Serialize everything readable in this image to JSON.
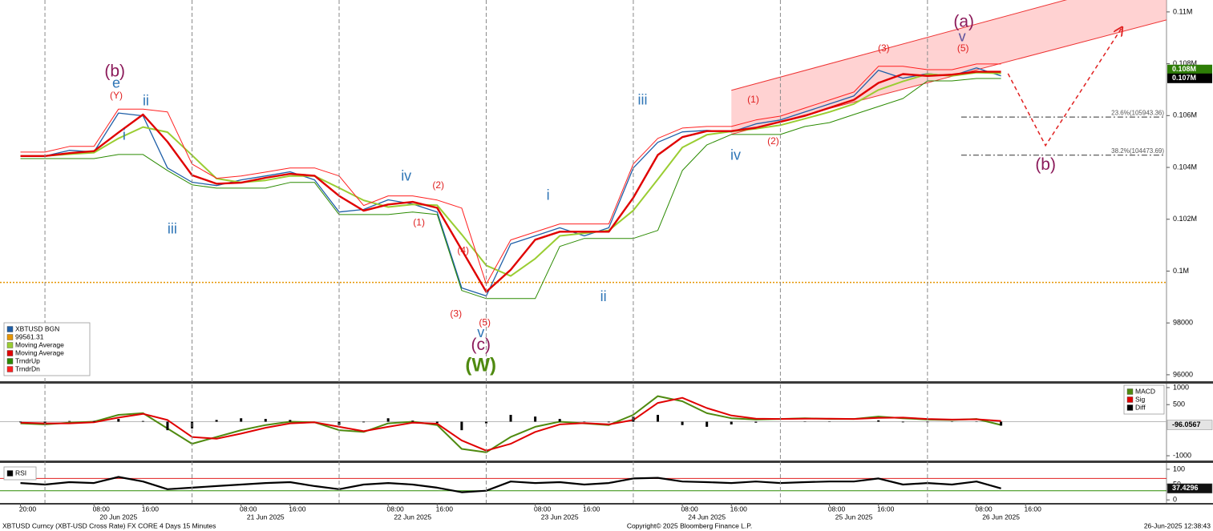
{
  "chart_data": [
    {
      "type": "line",
      "xlim": [
        "2025-06-19T16:40",
        "2025-06-27T15:00"
      ],
      "ylim": [
        95750,
        110460
      ],
      "yticks": [
        {
          "value": 110000,
          "label": "0.11M"
        },
        {
          "value": 108000,
          "label": "0.108M"
        },
        {
          "value": 106000,
          "label": "0.106M"
        },
        {
          "value": 104000,
          "label": "0.104M"
        },
        {
          "value": 102000,
          "label": "0.102M"
        },
        {
          "value": 100000,
          "label": "0.1M"
        },
        98000,
        96000
      ],
      "xticks": [
        {
          "value": "2025-06-19T20:00",
          "label": "20:00"
        },
        {
          "value": "2025-06-20T08:00",
          "label": "08:00"
        },
        {
          "value": "2025-06-20T16:00",
          "label": "16:00"
        },
        {
          "value": "2025-06-21T08:00",
          "label": "08:00"
        },
        {
          "value": "2025-06-21T16:00",
          "label": "16:00"
        },
        {
          "value": "2025-06-22T08:00",
          "label": "08:00"
        },
        {
          "value": "2025-06-22T16:00",
          "label": "16:00"
        },
        {
          "value": "2025-06-23T08:00",
          "label": "08:00"
        },
        {
          "value": "2025-06-23T16:00",
          "label": "16:00"
        },
        {
          "value": "2025-06-24T08:00",
          "label": "08:00"
        },
        {
          "value": "2025-06-24T16:00",
          "label": "16:00"
        },
        {
          "value": "2025-06-25T08:00",
          "label": "08:00"
        },
        {
          "value": "2025-06-25T16:00",
          "label": "16:00"
        },
        {
          "value": "2025-06-26T08:00",
          "label": "08:00"
        },
        {
          "value": "2025-06-26T16:00",
          "label": "16:00"
        }
      ],
      "xdates": [
        {
          "value": "2025-06-20",
          "label": "20 Jun 2025"
        },
        {
          "value": "2025-06-21",
          "label": "21 Jun 2025"
        },
        {
          "value": "2025-06-22",
          "label": "22 Jun 2025"
        },
        {
          "value": "2025-06-23",
          "label": "23 Jun 2025"
        },
        {
          "value": "2025-06-24",
          "label": "24 Jun 2025"
        },
        {
          "value": "2025-06-25",
          "label": "25 Jun 2025"
        },
        {
          "value": "2025-06-26",
          "label": "26 Jun 2025"
        }
      ],
      "x": [
        "2025-06-19T20:00",
        "2025-06-20T00:00",
        "2025-06-20T04:00",
        "2025-06-20T08:00",
        "2025-06-20T12:00",
        "2025-06-20T16:00",
        "2025-06-20T20:00",
        "2025-06-21T00:00",
        "2025-06-21T04:00",
        "2025-06-21T08:00",
        "2025-06-21T12:00",
        "2025-06-21T16:00",
        "2025-06-21T20:00",
        "2025-06-22T00:00",
        "2025-06-22T04:00",
        "2025-06-22T08:00",
        "2025-06-22T12:00",
        "2025-06-22T16:00",
        "2025-06-22T20:00",
        "2025-06-23T00:00",
        "2025-06-23T04:00",
        "2025-06-23T08:00",
        "2025-06-23T12:00",
        "2025-06-23T16:00",
        "2025-06-23T20:00",
        "2025-06-24T00:00",
        "2025-06-24T04:00",
        "2025-06-24T08:00",
        "2025-06-24T12:00",
        "2025-06-24T16:00",
        "2025-06-24T20:00",
        "2025-06-25T00:00",
        "2025-06-25T04:00",
        "2025-06-25T08:00",
        "2025-06-25T12:00",
        "2025-06-25T16:00",
        "2025-06-25T20:00",
        "2025-06-26T00:00",
        "2025-06-26T04:00",
        "2025-06-26T08:00",
        "2025-06-26T12:00"
      ],
      "series": [
        {
          "name": "XBTUSD BGN",
          "color": "#1f5fa8",
          "width": 1.3,
          "values": [
            104440,
            104440,
            104660,
            104600,
            106100,
            105990,
            103980,
            103430,
            103300,
            103520,
            103670,
            103830,
            103520,
            102280,
            102380,
            102750,
            102590,
            102280,
            99350,
            99040,
            101050,
            101360,
            101670,
            101360,
            101670,
            103980,
            104970,
            105370,
            105430,
            105370,
            105680,
            105830,
            106140,
            106450,
            106760,
            107750,
            107440,
            107620,
            107530,
            107840,
            107530
          ]
        },
        {
          "name": "Moving Average",
          "color": "#9acd32",
          "width": 2,
          "values": [
            104440,
            104440,
            104510,
            104570,
            105120,
            105560,
            105360,
            104470,
            103570,
            103420,
            103500,
            103670,
            103670,
            103210,
            102730,
            102470,
            102570,
            102540,
            101410,
            100220,
            99810,
            100480,
            101360,
            101460,
            101570,
            102340,
            103540,
            104770,
            105260,
            105390,
            105490,
            105630,
            105880,
            106140,
            106450,
            106990,
            107320,
            107600,
            107530,
            107660,
            107630
          ]
        },
        {
          "name": "Moving Average",
          "color": "#e00000",
          "width": 2.4,
          "values": [
            104440,
            104440,
            104550,
            104630,
            105350,
            106040,
            104990,
            103700,
            103370,
            103410,
            103600,
            103750,
            103680,
            102900,
            102330,
            102570,
            102670,
            102440,
            100820,
            99200,
            100050,
            101210,
            101520,
            101520,
            101520,
            102830,
            104480,
            105170,
            105400,
            105400,
            105530,
            105760,
            105990,
            106300,
            106610,
            107260,
            107600,
            107530,
            107580,
            107690,
            107690
          ]
        },
        {
          "name": "TrndrUp",
          "color": "#2a8a00",
          "width": 1,
          "values": [
            104340,
            104340,
            104340,
            104340,
            104500,
            104500,
            103880,
            103330,
            103200,
            103200,
            103200,
            103420,
            103420,
            102180,
            102180,
            102180,
            102280,
            102180,
            99250,
            98940,
            98940,
            98940,
            100950,
            101260,
            101260,
            101260,
            101570,
            103880,
            104870,
            105270,
            105270,
            105270,
            105580,
            105730,
            106040,
            106350,
            106660,
            107340,
            107340,
            107430,
            107430
          ]
        },
        {
          "name": "TrndrDn",
          "color": "#ff2020",
          "width": 1,
          "values": [
            104590,
            104590,
            104810,
            104810,
            106250,
            106250,
            106140,
            104130,
            103580,
            103670,
            103820,
            103980,
            103980,
            103670,
            102530,
            102900,
            102900,
            102740,
            102430,
            99500,
            101200,
            101510,
            101820,
            101820,
            101820,
            104130,
            105120,
            105520,
            105580,
            105580,
            105830,
            105980,
            106290,
            106600,
            106910,
            107900,
            107900,
            107770,
            107770,
            107990,
            107990
          ]
        }
      ],
      "hlines": [
        {
          "value": 99561.31,
          "color": "#e69500"
        }
      ],
      "price_labels": [
        {
          "value": 107778,
          "label": "0.108M",
          "color": "#2e7d07"
        },
        {
          "value": 107438,
          "label": "0.107M",
          "color": "#000000"
        }
      ],
      "channel": {
        "x": [
          "2025-06-24T16:00",
          "2025-06-27T15:00"
        ],
        "upper": [
          106975,
          111512
        ],
        "lower": [
          105278,
          109691
        ],
        "color": "#ff9c9c"
      },
      "projection": {
        "x": [
          "2025-06-26T13:08",
          "2025-06-26T19:16",
          "2025-06-27T07:41"
        ],
        "y": [
          107620,
          104846,
          109383
        ],
        "color": "#e02020"
      },
      "fib_start": "2025-06-26T05:30",
      "fib_levels": [
        {
          "value": 105943.36,
          "label": "23.6%(105943.36)"
        },
        {
          "value": 104473.69,
          "label": "38.2%(104473.69)"
        }
      ],
      "annotations": [
        {
          "text": "(b)",
          "x": "2025-06-20T11:24",
          "y": 107685,
          "color": "#8b1a5a"
        },
        {
          "text": "e",
          "x": "2025-06-20T11:38",
          "y": 107222,
          "color": "#2e75b6"
        },
        {
          "text": "(Y)",
          "x": "2025-06-20T11:38",
          "y": 106759,
          "color": "#e02020"
        },
        {
          "text": "ii",
          "x": "2025-06-20T16:28",
          "y": 106543,
          "color": "#2e75b6"
        },
        {
          "text": "i",
          "x": "2025-06-20T12:56",
          "y": 105216,
          "color": "#2e75b6"
        },
        {
          "text": "iii",
          "x": "2025-06-20T20:47",
          "y": 101605,
          "color": "#2e75b6"
        },
        {
          "text": "iv",
          "x": "2025-06-22T10:57",
          "y": 103642,
          "color": "#2e75b6"
        },
        {
          "text": "(2)",
          "x": "2025-06-22T16:11",
          "y": 103302,
          "color": "#e02020"
        },
        {
          "text": "(1)",
          "x": "2025-06-22T13:02",
          "y": 101852,
          "color": "#e02020"
        },
        {
          "text": "(4)",
          "x": "2025-06-22T20:14",
          "y": 100772,
          "color": "#e02020"
        },
        {
          "text": "(3)",
          "x": "2025-06-22T19:04",
          "y": 98333,
          "color": "#e02020"
        },
        {
          "text": "(5)",
          "x": "2025-06-22T23:46",
          "y": 97994,
          "color": "#e02020"
        },
        {
          "text": "v",
          "x": "2025-06-22T23:07",
          "y": 97593,
          "color": "#2e75b6"
        },
        {
          "text": "(c)",
          "x": "2025-06-22T23:07",
          "y": 97130,
          "color": "#8b1a5a"
        },
        {
          "text": "(W)",
          "x": "2025-06-22T23:07",
          "y": 96327,
          "color": "#4f8a10"
        },
        {
          "text": "i",
          "x": "2025-06-23T10:06",
          "y": 102901,
          "color": "#2e75b6"
        },
        {
          "text": "ii",
          "x": "2025-06-23T19:07",
          "y": 98981,
          "color": "#2e75b6"
        },
        {
          "text": "iii",
          "x": "2025-06-24T01:31",
          "y": 106574,
          "color": "#2e75b6"
        },
        {
          "text": "iv",
          "x": "2025-06-24T16:41",
          "y": 104444,
          "color": "#2e75b6"
        },
        {
          "text": "(1)",
          "x": "2025-06-24T19:34",
          "y": 106605,
          "color": "#e02020"
        },
        {
          "text": "(2)",
          "x": "2025-06-24T22:50",
          "y": 105000,
          "color": "#e02020"
        },
        {
          "text": "(3)",
          "x": "2025-06-25T16:52",
          "y": 108580,
          "color": "#e02020"
        },
        {
          "text": "(a)",
          "x": "2025-06-26T05:56",
          "y": 109599,
          "color": "#8b1a5a"
        },
        {
          "text": "v",
          "x": "2025-06-26T05:40",
          "y": 109012,
          "color": "#5a4f9c"
        },
        {
          "text": "(5)",
          "x": "2025-06-26T05:48",
          "y": 108580,
          "color": "#e02020"
        },
        {
          "text": "(b)",
          "x": "2025-06-26T19:16",
          "y": 104074,
          "color": "#8b1a5a"
        }
      ]
    },
    {
      "type": "line",
      "ylim": [
        -1140,
        1116
      ],
      "yticks": [
        1000,
        500,
        -1000
      ],
      "hlines": [
        {
          "value": 0,
          "color": "#b8b8b8"
        }
      ],
      "series": [
        {
          "name": "MACD",
          "color": "#4f8a10",
          "width": 2,
          "values": [
            -50,
            -80,
            -30,
            0,
            200,
            250,
            -200,
            -650,
            -450,
            -250,
            -100,
            0,
            -20,
            -250,
            -300,
            -50,
            0,
            -100,
            -800,
            -900,
            -450,
            -150,
            0,
            -50,
            -100,
            200,
            750,
            600,
            250,
            100,
            60,
            80,
            100,
            80,
            80,
            150,
            100,
            60,
            50,
            80,
            -96.0567
          ]
        },
        {
          "name": "Sig",
          "color": "#e00000",
          "width": 2,
          "values": [
            -30,
            -50,
            -50,
            -20,
            120,
            230,
            50,
            -450,
            -500,
            -350,
            -180,
            -50,
            -20,
            -150,
            -280,
            -150,
            -30,
            -60,
            -550,
            -850,
            -650,
            -300,
            -80,
            -40,
            -80,
            50,
            550,
            700,
            400,
            180,
            90,
            80,
            90,
            90,
            80,
            110,
            120,
            80,
            60,
            70,
            20
          ]
        },
        {
          "name": "Diff",
          "color": "#000000",
          "type": "bar",
          "values": [
            -20,
            -30,
            20,
            20,
            80,
            20,
            -250,
            -200,
            50,
            100,
            80,
            50,
            0,
            -100,
            -20,
            100,
            30,
            -40,
            -250,
            -50,
            200,
            150,
            80,
            -10,
            -20,
            150,
            200,
            -100,
            -150,
            -80,
            -30,
            0,
            10,
            -10,
            0,
            40,
            -20,
            -20,
            -10,
            10,
            -116.0567
          ]
        }
      ]
    },
    {
      "type": "line",
      "ylim": [
        -10,
        118
      ],
      "yticks": [
        100,
        50,
        0
      ],
      "hlines": [
        {
          "value": 70,
          "color": "#e02020"
        },
        {
          "value": 30,
          "color": "#2a8a00"
        }
      ],
      "series": [
        {
          "name": "RSI",
          "color": "#000000",
          "width": 2.2,
          "values": [
            55,
            50,
            58,
            55,
            75,
            60,
            35,
            40,
            45,
            50,
            55,
            58,
            45,
            35,
            50,
            55,
            50,
            40,
            25,
            30,
            60,
            55,
            58,
            50,
            55,
            70,
            72,
            60,
            58,
            55,
            60,
            55,
            58,
            60,
            60,
            70,
            50,
            55,
            50,
            60,
            37.4296
          ]
        }
      ]
    }
  ],
  "footer": {
    "left": "XBTUSD Curncy (XBT-USD Cross Rate) FX CORE 4 Days 15 Minutes",
    "center": "Copyright© 2025 Bloomberg Finance L.P.",
    "right": "26-Jun-2025 12:38:43"
  }
}
